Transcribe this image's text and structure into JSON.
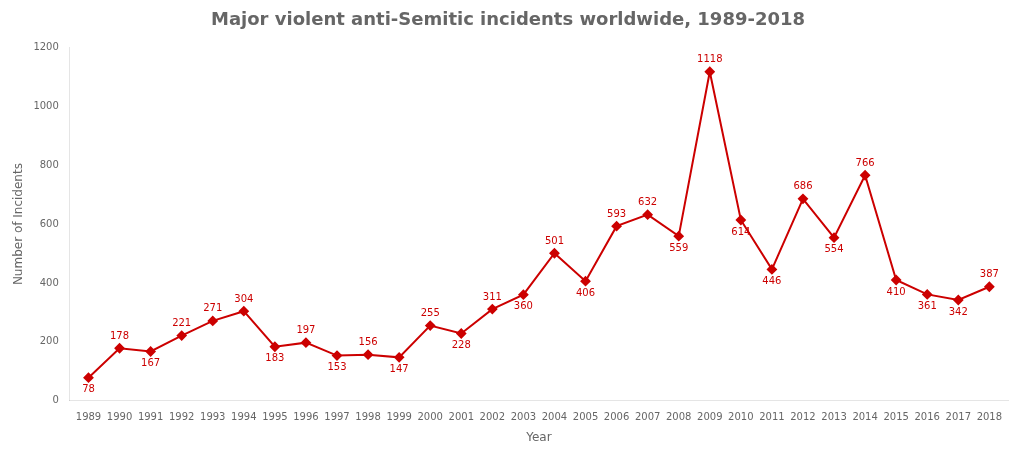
{
  "chart_data": {
    "type": "line",
    "title": "Major violent anti-Semitic incidents worldwide, 1989-2018",
    "xlabel": "Year",
    "ylabel": "Number of Incidents",
    "x": [
      1989,
      1990,
      1991,
      1992,
      1993,
      1994,
      1995,
      1996,
      1997,
      1998,
      1999,
      2000,
      2001,
      2002,
      2003,
      2004,
      2005,
      2006,
      2007,
      2008,
      2009,
      2010,
      2011,
      2012,
      2013,
      2014,
      2015,
      2016,
      2017,
      2018
    ],
    "values": [
      78,
      178,
      167,
      221,
      271,
      304,
      183,
      197,
      153,
      156,
      147,
      255,
      228,
      311,
      360,
      501,
      406,
      593,
      632,
      559,
      1118,
      614,
      446,
      686,
      554,
      766,
      410,
      361,
      342,
      387
    ],
    "color": "#cc0000",
    "marker": "diamond",
    "xlim": [
      1988.4,
      2018.6
    ],
    "xticks": [
      1989,
      1990,
      1991,
      1992,
      1993,
      1994,
      1995,
      1996,
      1997,
      1998,
      1999,
      2000,
      2001,
      2002,
      2003,
      2004,
      2005,
      2006,
      2007,
      2008,
      2009,
      2010,
      2011,
      2012,
      2013,
      2014,
      2015,
      2016,
      2017,
      2018
    ],
    "ylim": [
      0,
      1200
    ],
    "yticks": [
      0,
      200,
      400,
      600,
      800,
      1000,
      1200
    ],
    "grid": false,
    "data_labels": true
  }
}
